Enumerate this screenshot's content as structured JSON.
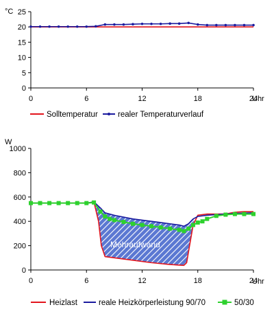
{
  "chart_data": [
    {
      "type": "line",
      "ylabel": "°C",
      "xlabel": "Uhr",
      "xlim": [
        0,
        24
      ],
      "ylim": [
        0,
        25
      ],
      "x_ticks": [
        0,
        6,
        12,
        18,
        24
      ],
      "y_ticks": [
        0,
        5,
        10,
        15,
        20,
        25
      ],
      "legend": "bottom",
      "series": [
        {
          "name": "Solltemperatur",
          "color": "#e2141c",
          "marker": "none",
          "x": [
            0,
            24
          ],
          "y": [
            20,
            20
          ]
        },
        {
          "name": "realer Temperaturverlauf",
          "color": "#1a1a9e",
          "marker": "dot",
          "x": [
            0,
            1,
            2,
            3,
            4,
            5,
            6,
            7,
            8,
            9,
            10,
            11,
            12,
            13,
            14,
            15,
            16,
            17,
            18,
            19,
            20,
            21,
            22,
            23,
            24
          ],
          "y": [
            20.1,
            20.1,
            20.1,
            20.1,
            20.1,
            20.1,
            20.1,
            20.2,
            20.8,
            20.8,
            20.8,
            20.9,
            21.0,
            21.0,
            21.0,
            21.1,
            21.1,
            21.3,
            20.8,
            20.6,
            20.6,
            20.6,
            20.6,
            20.6,
            20.6
          ]
        }
      ]
    },
    {
      "type": "line",
      "ylabel": "W",
      "xlabel": "Uhr",
      "xlim": [
        0,
        24
      ],
      "ylim": [
        0,
        1000
      ],
      "x_ticks": [
        0,
        6,
        12,
        18,
        24
      ],
      "y_ticks": [
        0,
        200,
        400,
        600,
        800,
        1000
      ],
      "legend": "bottom",
      "annotation": "Mehraufwand",
      "series": [
        {
          "name": "Heizlast",
          "color": "#e2141c",
          "marker": "none",
          "x": [
            0,
            6,
            6.8,
            7.3,
            7.6,
            8,
            8.5,
            9,
            11,
            13,
            15,
            16,
            16.5,
            16.8,
            17,
            17.5,
            18,
            19,
            20,
            21,
            22,
            23,
            24
          ],
          "y": [
            550,
            550,
            560,
            400,
            200,
            110,
            105,
            100,
            80,
            60,
            45,
            40,
            38,
            60,
            150,
            370,
            450,
            460,
            460,
            460,
            475,
            480,
            480
          ]
        },
        {
          "name": "reale Heizkörperleistung 90/70",
          "color": "#1a1a9e",
          "marker": "none",
          "x": [
            0,
            6,
            6.8,
            7.5,
            8,
            9,
            10,
            11,
            12,
            13,
            14,
            15,
            16,
            16.5,
            17,
            17.5,
            18,
            19,
            20,
            21,
            22,
            23,
            24
          ],
          "y": [
            550,
            550,
            560,
            510,
            470,
            450,
            435,
            420,
            410,
            400,
            390,
            380,
            370,
            360,
            380,
            420,
            440,
            450,
            455,
            460,
            465,
            468,
            470
          ]
        },
        {
          "name": "50/30",
          "color": "#2ed12e",
          "marker": "square",
          "x": [
            0,
            1,
            2,
            3,
            4,
            5,
            6,
            6.8,
            7.5,
            8,
            8.5,
            9,
            10,
            11,
            12,
            13,
            14,
            15,
            16,
            16.5,
            17,
            17.5,
            18,
            18.5,
            19,
            20,
            21,
            22,
            23,
            24
          ],
          "y": [
            550,
            550,
            550,
            550,
            550,
            550,
            550,
            555,
            480,
            440,
            420,
            410,
            395,
            380,
            370,
            360,
            350,
            340,
            330,
            320,
            340,
            370,
            390,
            400,
            420,
            445,
            455,
            460,
            460,
            460
          ]
        }
      ]
    }
  ]
}
